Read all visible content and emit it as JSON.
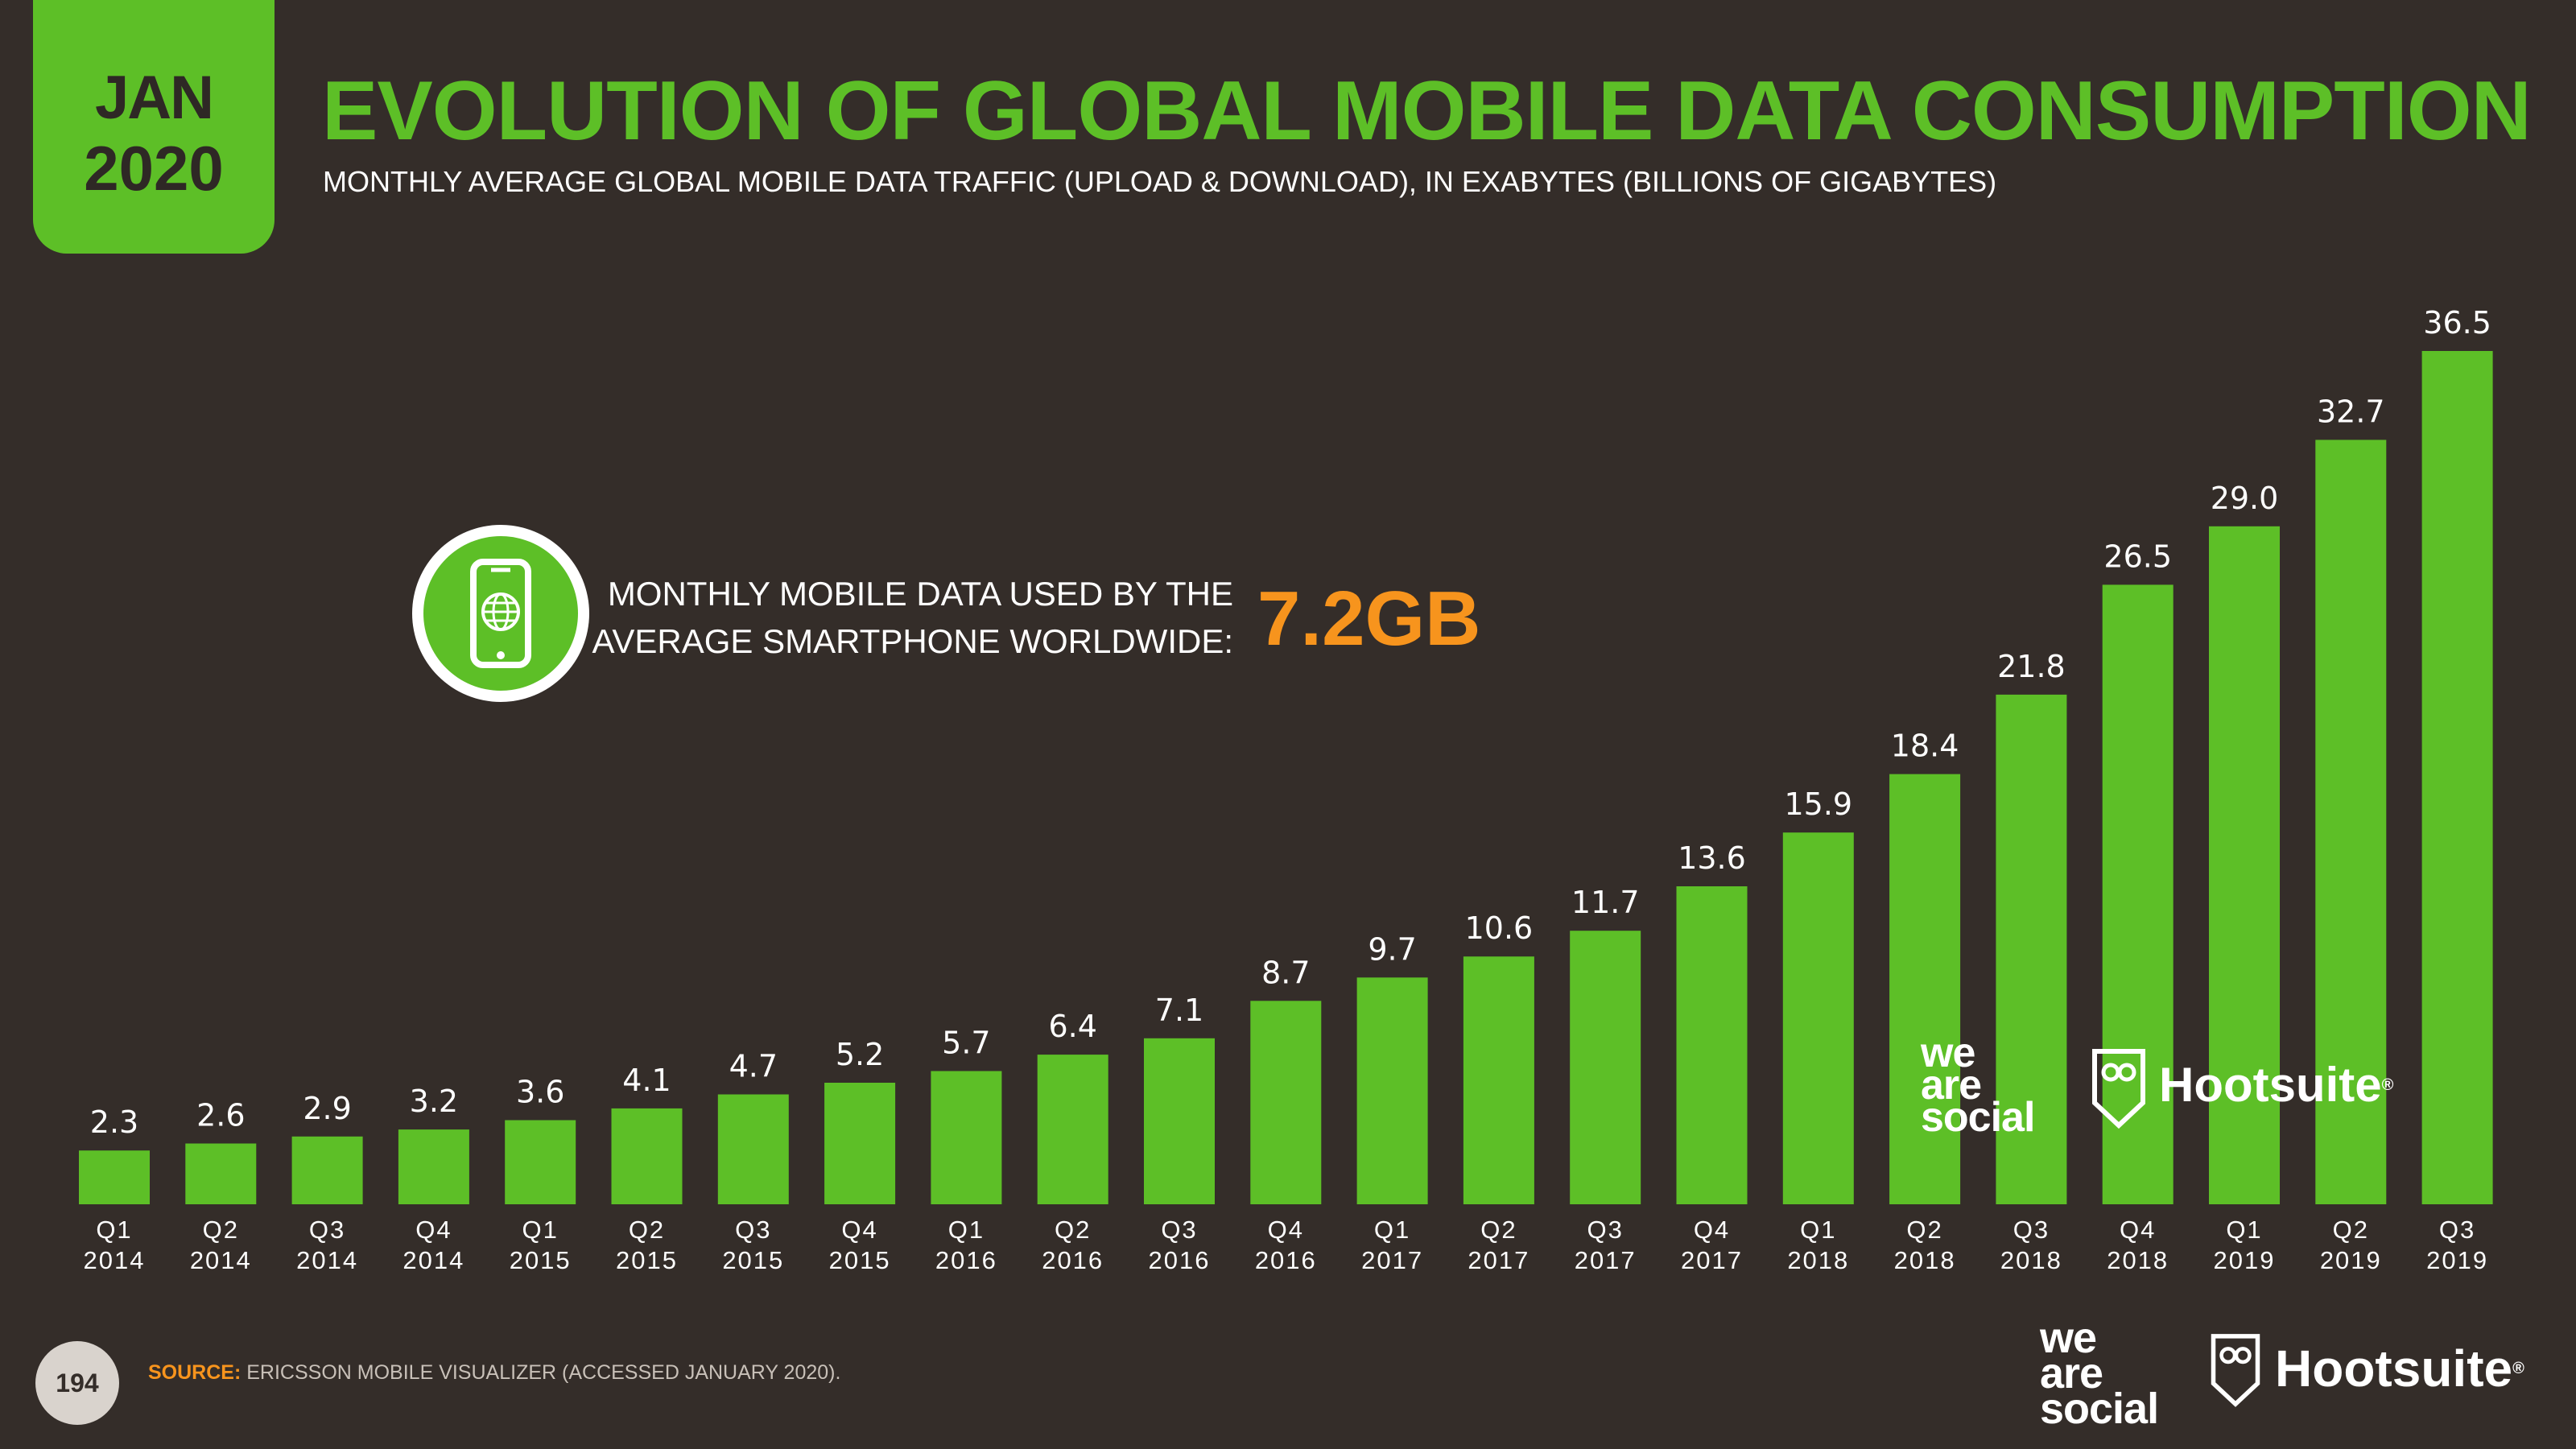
{
  "badge": {
    "month": "JAN",
    "year": "2020"
  },
  "title": "EVOLUTION OF GLOBAL MOBILE DATA CONSUMPTION",
  "subtitle": "MONTHLY AVERAGE GLOBAL MOBILE DATA TRAFFIC (UPLOAD & DOWNLOAD), IN EXABYTES (BILLIONS OF GIGABYTES)",
  "callout": {
    "line1": "MONTHLY MOBILE DATA USED BY THE",
    "line2": "AVERAGE SMARTPHONE WORLDWIDE:",
    "value": "7.2GB",
    "icon": "smartphone-globe-icon"
  },
  "chart_data": {
    "type": "bar",
    "categories": [
      [
        "Q1",
        "2014"
      ],
      [
        "Q2",
        "2014"
      ],
      [
        "Q3",
        "2014"
      ],
      [
        "Q4",
        "2014"
      ],
      [
        "Q1",
        "2015"
      ],
      [
        "Q2",
        "2015"
      ],
      [
        "Q3",
        "2015"
      ],
      [
        "Q4",
        "2015"
      ],
      [
        "Q1",
        "2016"
      ],
      [
        "Q2",
        "2016"
      ],
      [
        "Q3",
        "2016"
      ],
      [
        "Q4",
        "2016"
      ],
      [
        "Q1",
        "2017"
      ],
      [
        "Q2",
        "2017"
      ],
      [
        "Q3",
        "2017"
      ],
      [
        "Q4",
        "2017"
      ],
      [
        "Q1",
        "2018"
      ],
      [
        "Q2",
        "2018"
      ],
      [
        "Q3",
        "2018"
      ],
      [
        "Q4",
        "2018"
      ],
      [
        "Q1",
        "2019"
      ],
      [
        "Q2",
        "2019"
      ],
      [
        "Q3",
        "2019"
      ]
    ],
    "values": [
      2.3,
      2.6,
      2.9,
      3.2,
      3.6,
      4.1,
      4.7,
      5.2,
      5.7,
      6.4,
      7.1,
      8.7,
      9.7,
      10.6,
      11.7,
      13.6,
      15.9,
      18.4,
      21.8,
      26.5,
      29.0,
      32.7,
      36.5
    ],
    "value_labels": [
      "2.3",
      "2.6",
      "2.9",
      "3.2",
      "3.6",
      "4.1",
      "4.7",
      "5.2",
      "5.7",
      "6.4",
      "7.1",
      "8.7",
      "9.7",
      "10.6",
      "11.7",
      "13.6",
      "15.9",
      "18.4",
      "21.8",
      "26.5",
      "29.0",
      "32.7",
      "36.5"
    ],
    "ylim": [
      0,
      36.5
    ],
    "grid": false,
    "bar_color": "#5dbf27"
  },
  "logos": {
    "chart_wearesocial": [
      "we",
      "are",
      "social"
    ],
    "chart_hootsuite": "Hootsuite",
    "footer_wearesocial": [
      "we",
      "are",
      "social"
    ],
    "footer_hootsuite": "Hootsuite",
    "registered": "®"
  },
  "footer": {
    "page": "194",
    "source_label": "SOURCE:",
    "source_text": "ERICSSON MOBILE VISUALIZER (ACCESSED JANUARY 2020)."
  },
  "colors": {
    "background": "#342d29",
    "accent_green": "#5dbf27",
    "accent_orange": "#f7941d"
  }
}
